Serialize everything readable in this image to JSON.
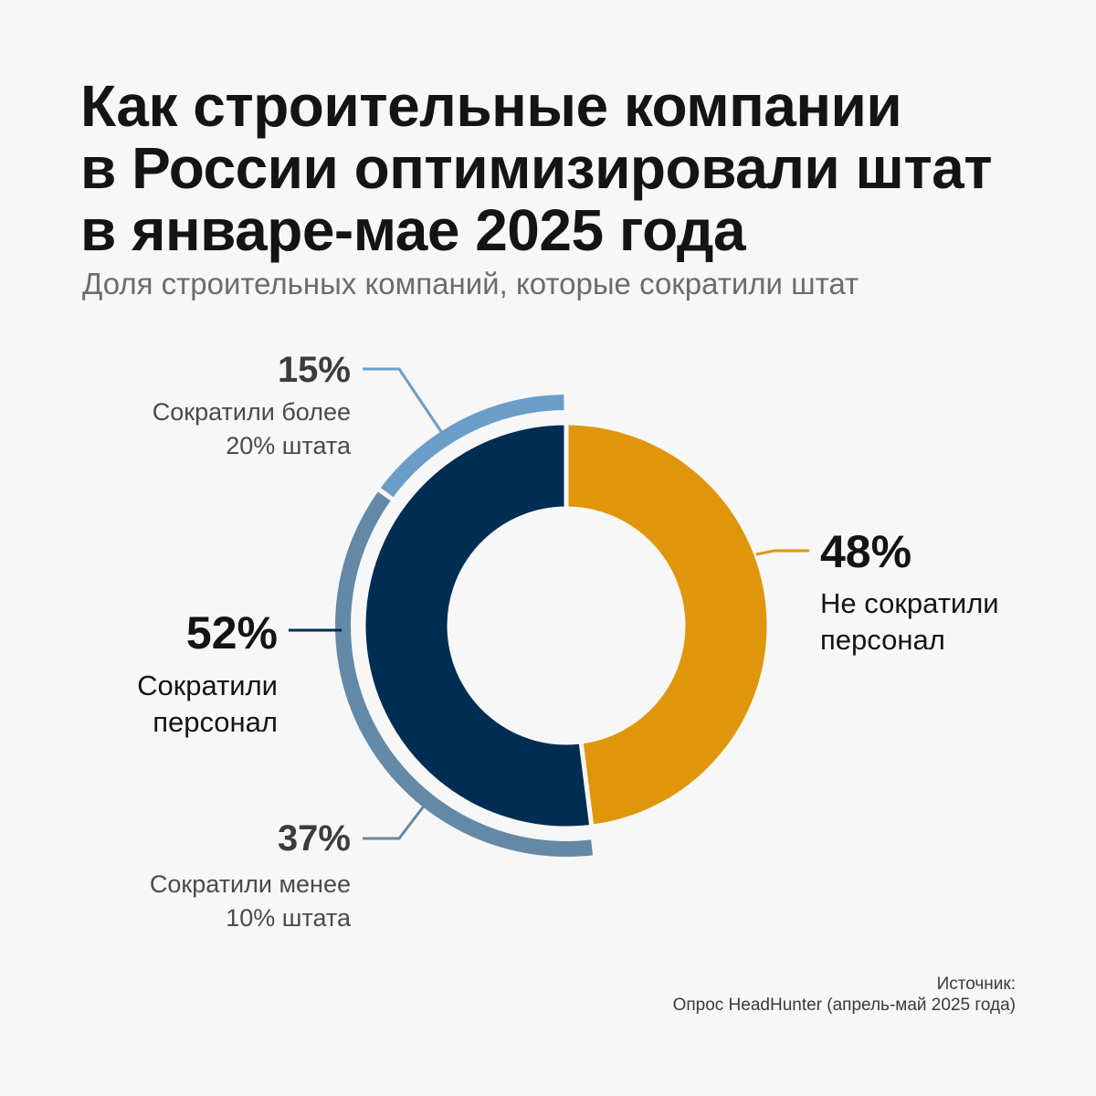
{
  "title_lines": [
    "Как строительные компании",
    "в России оптимизировали штат",
    "в январе-мае 2025 года"
  ],
  "subtitle": "Доля строительных компаний, которые сократили штат",
  "chart_data": {
    "type": "pie",
    "title": "Как строительные компании в России оптимизировали штат в январе-мае 2025 года",
    "subtitle": "Доля строительных компаний, которые сократили штат",
    "inner_ring": [
      {
        "label_lines": [
          "Не сократили",
          "персонал"
        ],
        "value": 48,
        "value_label": "48%",
        "color": "#e0960a"
      },
      {
        "label_lines": [
          "Сократили",
          "персонал"
        ],
        "value": 52,
        "value_label": "52%",
        "color": "#002d54"
      }
    ],
    "outer_ring": [
      {
        "label_lines": [
          "Сократили более",
          "20% штата"
        ],
        "value": 15,
        "value_label": "15%",
        "color": "#6a9ec9"
      },
      {
        "label_lines": [
          "Сократили менее",
          "10% штата"
        ],
        "value": 37,
        "value_label": "37%",
        "color": "#6389a7"
      }
    ]
  },
  "source": {
    "label": "Источник:",
    "text": "Опрос HeadHunter (апрель-май 2025 года)"
  }
}
